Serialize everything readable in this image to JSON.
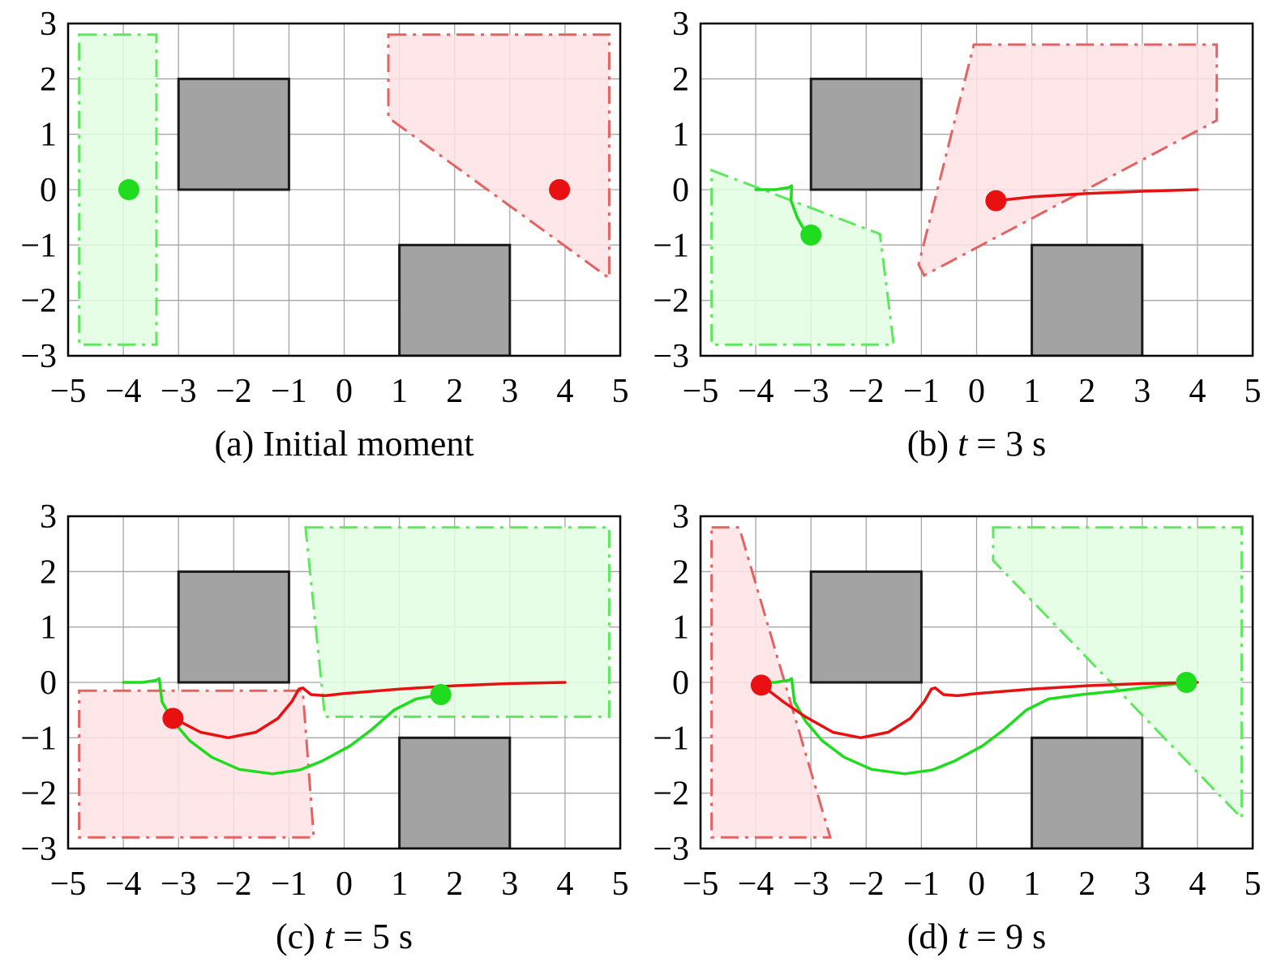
{
  "colors": {
    "grid": "#a6a6a6",
    "axis": "#000000",
    "obstacle_fill": "#a3a3a3",
    "obstacle_stroke": "#1a1a1a",
    "green": "#1fdc1f",
    "green_region_fill": "#e2fde2",
    "green_region_stroke": "#5ee85e",
    "red": "#e81010",
    "red_region_fill": "#ffe2e4",
    "red_region_stroke": "#e46262"
  },
  "chart_data": [
    {
      "type": "scatter",
      "caption": {
        "prefix": "(a) Initial moment",
        "variable": "",
        "suffix": ""
      },
      "xlim": [
        -5,
        5
      ],
      "ylim": [
        -3,
        3
      ],
      "xticks": [
        "−5",
        "−4",
        "−3",
        "−2",
        "−1",
        "0",
        "1",
        "2",
        "3",
        "4",
        "5"
      ],
      "yticks": [
        "3",
        "2",
        "1",
        "0",
        "−1",
        "−2",
        "−3"
      ],
      "grid": true,
      "obstacles": [
        {
          "x0": -3,
          "y0": 0,
          "x1": -1,
          "y1": 2
        },
        {
          "x0": 1,
          "y0": -3,
          "x1": 3,
          "y1": -1
        }
      ],
      "regions": [
        {
          "color": "green",
          "points": [
            [
              -4.8,
              2.8
            ],
            [
              -3.4,
              2.8
            ],
            [
              -3.4,
              -2.8
            ],
            [
              -4.8,
              -2.8
            ]
          ]
        },
        {
          "color": "red",
          "points": [
            [
              0.8,
              2.8
            ],
            [
              4.8,
              2.8
            ],
            [
              4.8,
              -1.6
            ],
            [
              0.8,
              1.3
            ]
          ]
        }
      ],
      "paths": [],
      "agents": [
        {
          "color": "green",
          "x": -3.9,
          "y": 0
        },
        {
          "color": "red",
          "x": 3.9,
          "y": 0
        }
      ]
    },
    {
      "type": "scatter",
      "caption": {
        "prefix": "(b) ",
        "variable": "t",
        "suffix": " = 3 s"
      },
      "xlim": [
        -5,
        5
      ],
      "ylim": [
        -3,
        3
      ],
      "xticks": [
        "−5",
        "−4",
        "−3",
        "−2",
        "−1",
        "0",
        "1",
        "2",
        "3",
        "4",
        "5"
      ],
      "yticks": [
        "3",
        "2",
        "1",
        "0",
        "−1",
        "−2",
        "−3"
      ],
      "grid": true,
      "obstacles": [
        {
          "x0": -3,
          "y0": 0,
          "x1": -1,
          "y1": 2
        },
        {
          "x0": 1,
          "y0": -3,
          "x1": 3,
          "y1": -1
        }
      ],
      "regions": [
        {
          "color": "green",
          "points": [
            [
              -4.8,
              0.35
            ],
            [
              -1.75,
              -0.8
            ],
            [
              -1.5,
              -2.8
            ],
            [
              -4.8,
              -2.8
            ]
          ]
        },
        {
          "color": "red",
          "points": [
            [
              -0.05,
              2.62
            ],
            [
              4.35,
              2.62
            ],
            [
              4.35,
              1.25
            ],
            [
              -0.95,
              -1.55
            ],
            [
              -1.05,
              -1.35
            ]
          ]
        }
      ],
      "paths": [
        {
          "color": "green",
          "points": [
            [
              -4.0,
              0.0
            ],
            [
              -3.65,
              0.0
            ],
            [
              -3.4,
              0.04
            ],
            [
              -3.35,
              0.07
            ],
            [
              -3.36,
              -0.2
            ],
            [
              -3.25,
              -0.5
            ],
            [
              -3.15,
              -0.68
            ],
            [
              -3.0,
              -0.82
            ]
          ]
        },
        {
          "color": "red",
          "points": [
            [
              4.0,
              0.0
            ],
            [
              3.0,
              -0.03
            ],
            [
              2.0,
              -0.07
            ],
            [
              1.0,
              -0.13
            ],
            [
              0.35,
              -0.2
            ]
          ]
        }
      ],
      "agents": [
        {
          "color": "green",
          "x": -3.0,
          "y": -0.82
        },
        {
          "color": "red",
          "x": 0.35,
          "y": -0.2
        }
      ]
    },
    {
      "type": "scatter",
      "caption": {
        "prefix": "(c) ",
        "variable": "t",
        "suffix": " = 5 s"
      },
      "xlim": [
        -5,
        5
      ],
      "ylim": [
        -3,
        3
      ],
      "xticks": [
        "−5",
        "−4",
        "−3",
        "−2",
        "−1",
        "0",
        "1",
        "2",
        "3",
        "4",
        "5"
      ],
      "yticks": [
        "3",
        "2",
        "1",
        "0",
        "−1",
        "−2",
        "−3"
      ],
      "grid": true,
      "obstacles": [
        {
          "x0": -3,
          "y0": 0,
          "x1": -1,
          "y1": 2
        },
        {
          "x0": 1,
          "y0": -3,
          "x1": 3,
          "y1": -1
        }
      ],
      "regions": [
        {
          "color": "green",
          "points": [
            [
              -0.7,
              2.8
            ],
            [
              4.8,
              2.8
            ],
            [
              4.8,
              -0.62
            ],
            [
              -0.35,
              -0.62
            ]
          ]
        },
        {
          "color": "red",
          "points": [
            [
              -4.8,
              -0.15
            ],
            [
              -0.75,
              -0.15
            ],
            [
              -0.55,
              -2.8
            ],
            [
              -4.8,
              -2.8
            ]
          ]
        }
      ],
      "paths": [
        {
          "color": "green",
          "points": [
            [
              -4.0,
              0.0
            ],
            [
              -3.65,
              0.0
            ],
            [
              -3.4,
              0.04
            ],
            [
              -3.35,
              0.07
            ],
            [
              -3.3,
              -0.35
            ],
            [
              -3.1,
              -0.7
            ],
            [
              -2.8,
              -1.05
            ],
            [
              -2.4,
              -1.35
            ],
            [
              -1.9,
              -1.57
            ],
            [
              -1.3,
              -1.65
            ],
            [
              -0.8,
              -1.58
            ],
            [
              -0.4,
              -1.42
            ],
            [
              0.1,
              -1.15
            ],
            [
              0.5,
              -0.85
            ],
            [
              0.9,
              -0.5
            ],
            [
              1.3,
              -0.3
            ],
            [
              1.75,
              -0.22
            ]
          ]
        },
        {
          "color": "red",
          "points": [
            [
              4.0,
              0.0
            ],
            [
              3.0,
              -0.02
            ],
            [
              2.0,
              -0.06
            ],
            [
              1.0,
              -0.12
            ],
            [
              0.0,
              -0.2
            ],
            [
              -0.35,
              -0.24
            ],
            [
              -0.6,
              -0.22
            ],
            [
              -0.75,
              -0.1
            ],
            [
              -0.82,
              -0.12
            ],
            [
              -0.95,
              -0.35
            ],
            [
              -1.2,
              -0.65
            ],
            [
              -1.6,
              -0.9
            ],
            [
              -2.1,
              -1.0
            ],
            [
              -2.6,
              -0.9
            ],
            [
              -2.95,
              -0.72
            ],
            [
              -3.1,
              -0.65
            ]
          ]
        }
      ],
      "agents": [
        {
          "color": "green",
          "x": 1.75,
          "y": -0.22
        },
        {
          "color": "red",
          "x": -3.1,
          "y": -0.65
        }
      ]
    },
    {
      "type": "scatter",
      "caption": {
        "prefix": "(d) ",
        "variable": "t",
        "suffix": " = 9 s"
      },
      "xlim": [
        -5,
        5
      ],
      "ylim": [
        -3,
        3
      ],
      "xticks": [
        "−5",
        "−4",
        "−3",
        "−2",
        "−1",
        "0",
        "1",
        "2",
        "3",
        "4",
        "5"
      ],
      "yticks": [
        "3",
        "2",
        "1",
        "0",
        "−1",
        "−2",
        "−3"
      ],
      "grid": true,
      "obstacles": [
        {
          "x0": -3,
          "y0": 0,
          "x1": -1,
          "y1": 2
        },
        {
          "x0": 1,
          "y0": -3,
          "x1": 3,
          "y1": -1
        }
      ],
      "regions": [
        {
          "color": "red",
          "points": [
            [
              -4.8,
              2.8
            ],
            [
              -4.3,
              2.8
            ],
            [
              -2.65,
              -2.8
            ],
            [
              -4.8,
              -2.8
            ]
          ]
        },
        {
          "color": "green",
          "points": [
            [
              0.3,
              2.8
            ],
            [
              4.8,
              2.8
            ],
            [
              4.8,
              -2.45
            ],
            [
              0.3,
              2.2
            ]
          ]
        }
      ],
      "paths": [
        {
          "color": "green",
          "points": [
            [
              -4.0,
              0.0
            ],
            [
              -3.65,
              0.0
            ],
            [
              -3.4,
              0.04
            ],
            [
              -3.35,
              0.07
            ],
            [
              -3.3,
              -0.35
            ],
            [
              -3.1,
              -0.7
            ],
            [
              -2.8,
              -1.05
            ],
            [
              -2.4,
              -1.35
            ],
            [
              -1.9,
              -1.57
            ],
            [
              -1.3,
              -1.65
            ],
            [
              -0.8,
              -1.58
            ],
            [
              -0.4,
              -1.42
            ],
            [
              0.1,
              -1.15
            ],
            [
              0.5,
              -0.85
            ],
            [
              0.9,
              -0.5
            ],
            [
              1.3,
              -0.3
            ],
            [
              1.9,
              -0.22
            ],
            [
              2.5,
              -0.16
            ],
            [
              3.0,
              -0.1
            ],
            [
              3.5,
              -0.04
            ],
            [
              3.8,
              0.0
            ]
          ]
        },
        {
          "color": "red",
          "points": [
            [
              4.0,
              0.0
            ],
            [
              3.0,
              -0.02
            ],
            [
              2.0,
              -0.06
            ],
            [
              1.0,
              -0.12
            ],
            [
              0.0,
              -0.2
            ],
            [
              -0.35,
              -0.24
            ],
            [
              -0.6,
              -0.22
            ],
            [
              -0.75,
              -0.1
            ],
            [
              -0.82,
              -0.12
            ],
            [
              -0.95,
              -0.35
            ],
            [
              -1.2,
              -0.65
            ],
            [
              -1.6,
              -0.9
            ],
            [
              -2.1,
              -1.0
            ],
            [
              -2.6,
              -0.9
            ],
            [
              -3.1,
              -0.62
            ],
            [
              -3.5,
              -0.35
            ],
            [
              -3.8,
              -0.12
            ],
            [
              -3.9,
              -0.05
            ]
          ]
        }
      ],
      "agents": [
        {
          "color": "red",
          "x": -3.9,
          "y": -0.05
        },
        {
          "color": "green",
          "x": 3.8,
          "y": 0.0
        }
      ]
    }
  ]
}
